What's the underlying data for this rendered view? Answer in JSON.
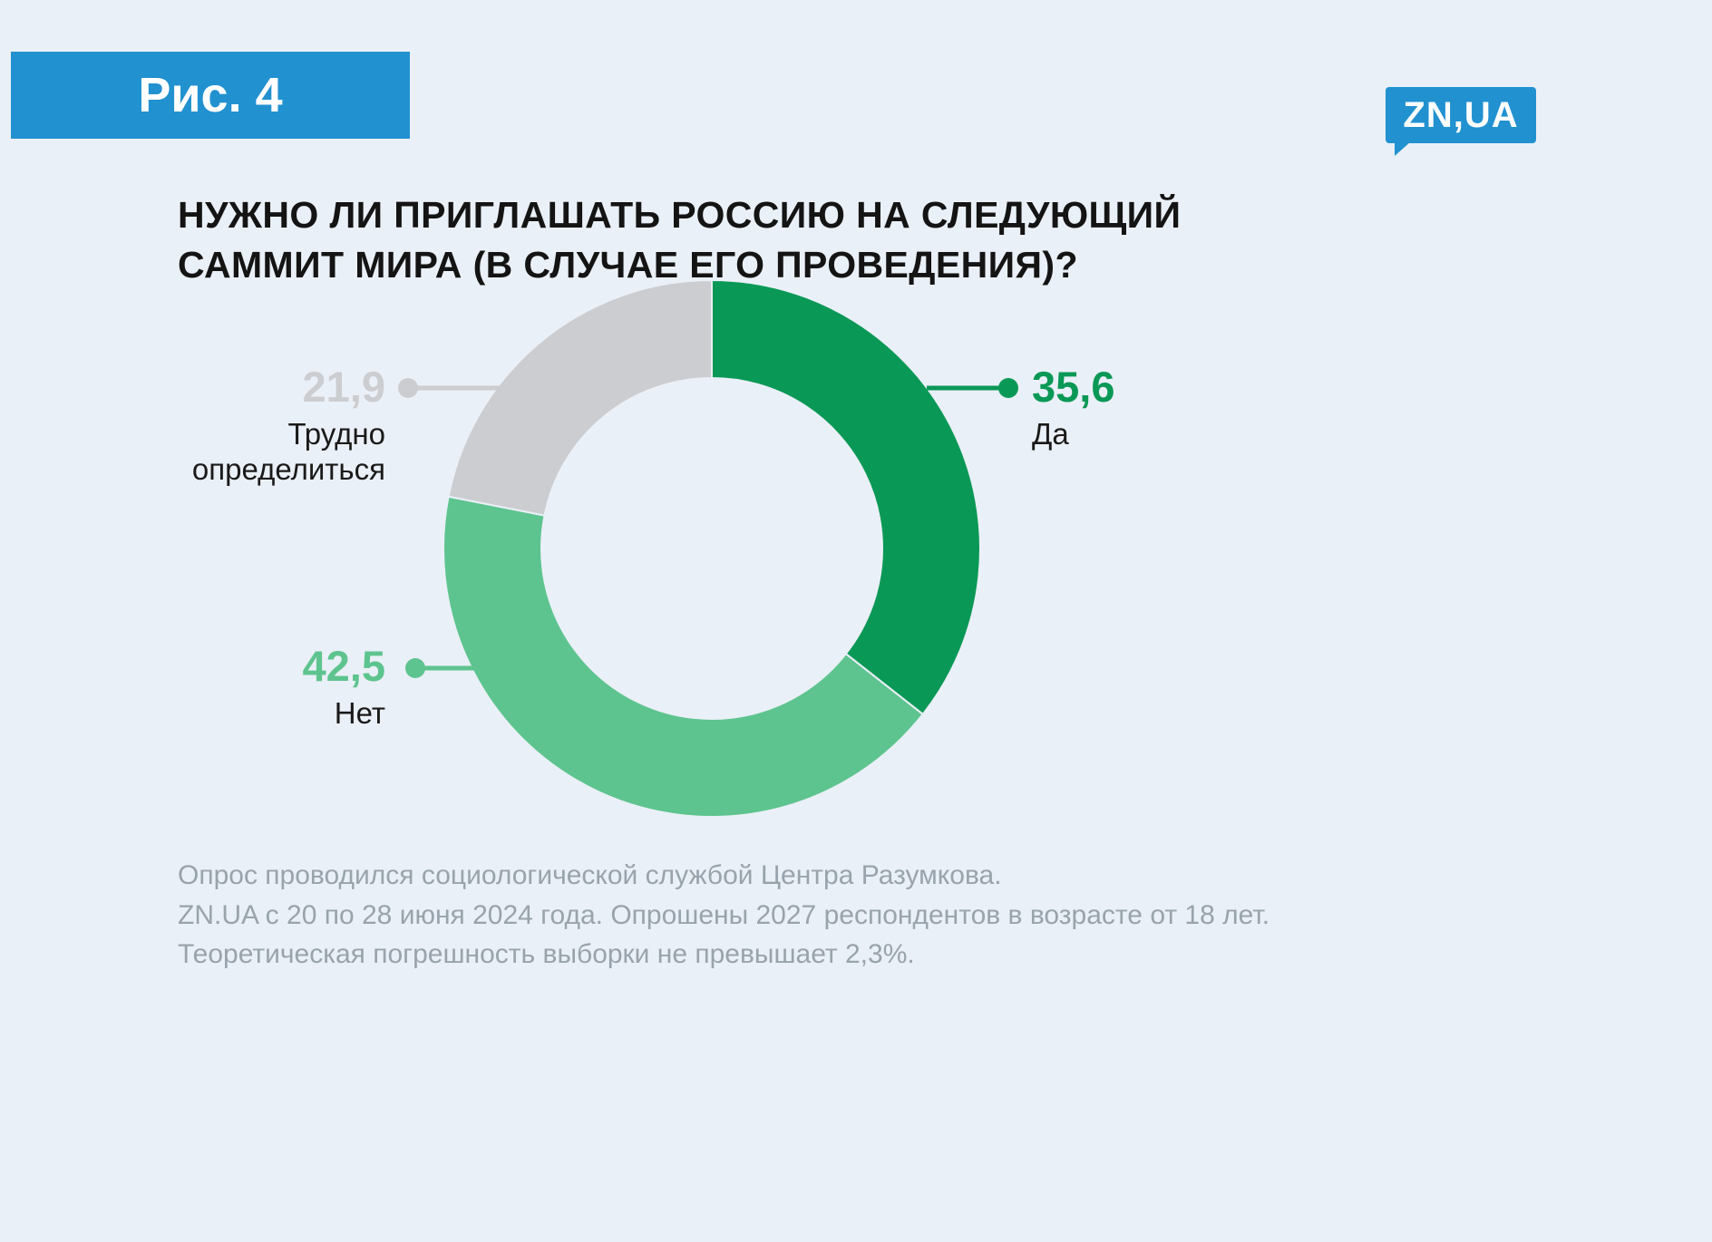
{
  "header": {
    "figure_label": "Рис. 4",
    "logo_text": "ZN,UA"
  },
  "colors": {
    "background": "#eaf0f7",
    "accent_blue": "#2191d0",
    "title": "#141414",
    "label_text": "#1a1a1a",
    "footer": "#99a3ac"
  },
  "chart_data": {
    "type": "pie",
    "subtype": "donut",
    "title": "НУЖНО ЛИ ПРИГЛАШАТЬ РОССИЮ НА СЛЕДУЮЩИЙ САММИТ МИРА (В СЛУЧАЕ ЕГО ПРОВЕДЕНИЯ)?",
    "unit": "percent",
    "start_angle_deg": 0,
    "direction": "clockwise",
    "legend_position": "callout-labels",
    "segments": [
      {
        "label": "Да",
        "value": 35.6,
        "display": "35,6",
        "color": "#0a9856"
      },
      {
        "label": "Нет",
        "value": 42.5,
        "display": "42,5",
        "color": "#5ec48f"
      },
      {
        "label": "Трудно определиться",
        "value": 21.9,
        "display": "21,9",
        "color": "#cccdd0"
      }
    ]
  },
  "footer": {
    "lines": [
      "Опрос проводился социологической службой Центра Разумкова.",
      "ZN.UA с 20 по 28 июня 2024 года. Опрошены 2027 респондентов в возрасте от 18 лет.",
      "Теоретическая погрешность выборки не превышает 2,3%."
    ]
  }
}
